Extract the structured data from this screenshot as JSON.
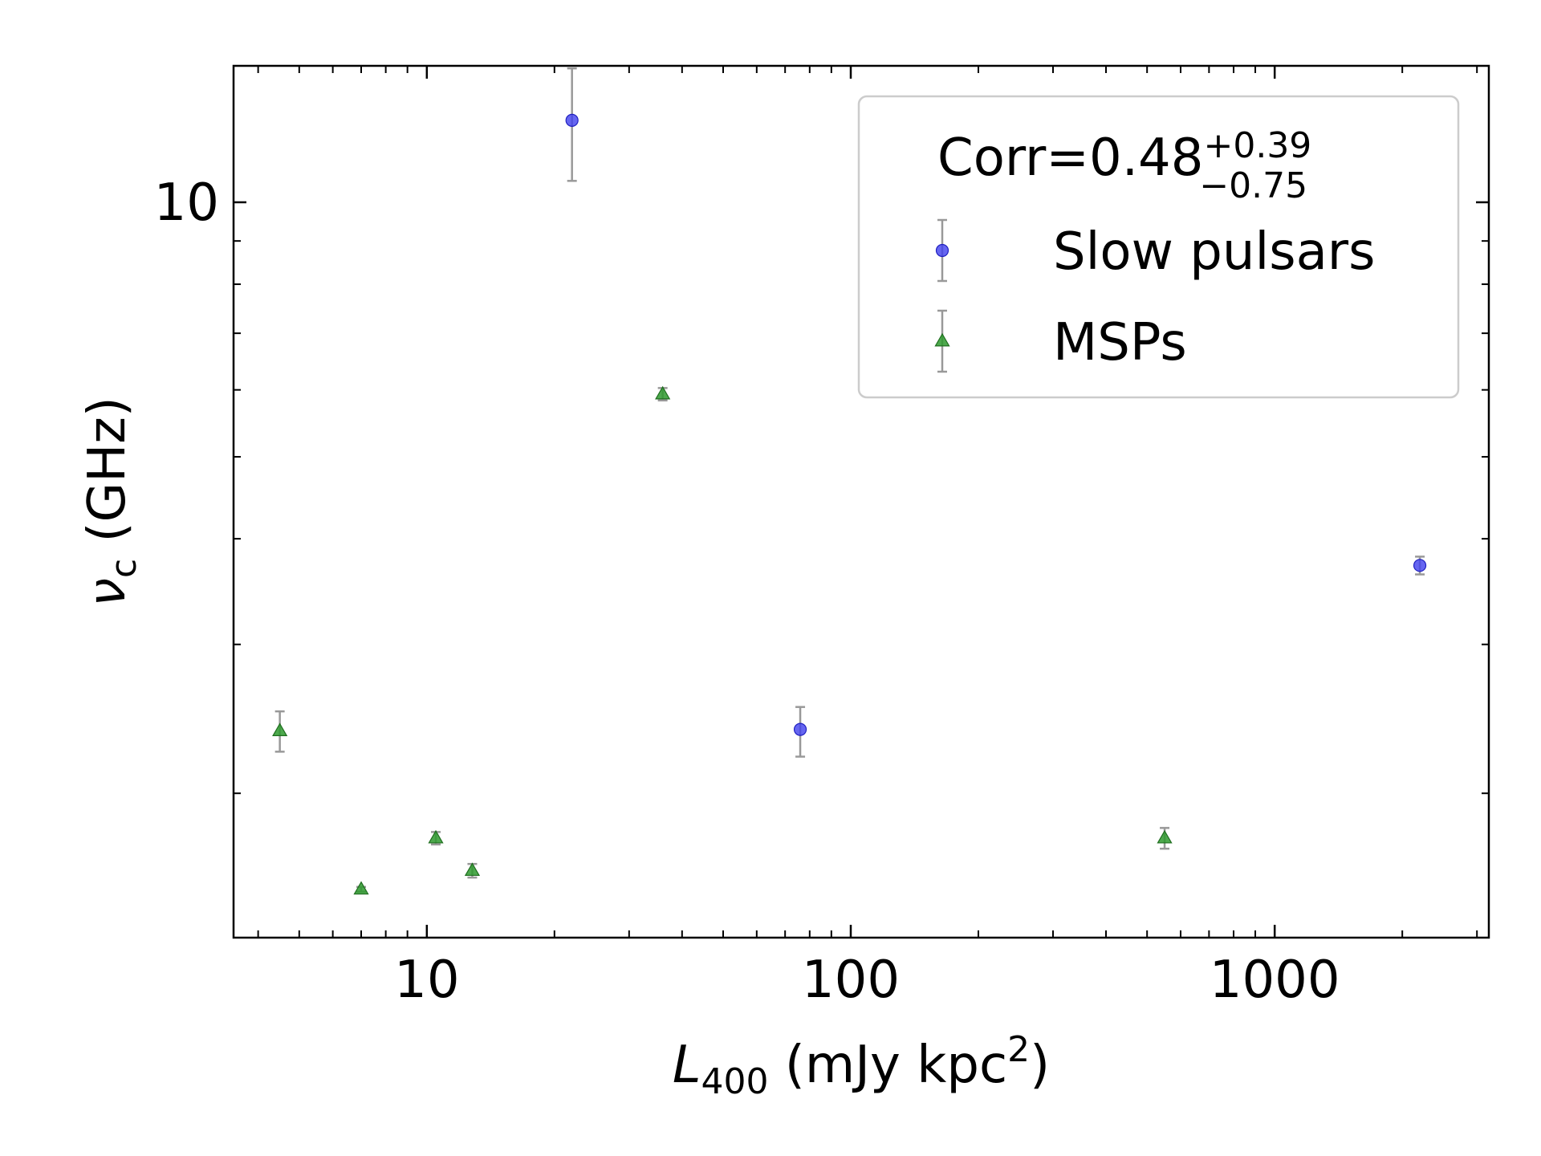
{
  "chart_data": {
    "type": "scatter",
    "title": "",
    "xlabel": {
      "main": "L",
      "sub": "400",
      "rest": " (mJy kpc",
      "sup": "2",
      "close": ")"
    },
    "ylabel": {
      "main": "ν",
      "sub": "c",
      "rest": " (GHz)"
    },
    "xscale": "log",
    "yscale": "log",
    "xlim": [
      3.5,
      3200
    ],
    "ylim": [
      1.35,
      14.5
    ],
    "x_ticks": [
      10,
      100,
      1000
    ],
    "x_tick_labels": [
      "10",
      "100",
      "1000"
    ],
    "y_ticks": [
      10
    ],
    "y_tick_labels": [
      "10"
    ],
    "grid": false,
    "legend": {
      "placement": "top-right",
      "title": {
        "main": "Corr=0.48",
        "sup": "+0.39",
        "sub": "−0.75"
      }
    },
    "series": [
      {
        "name": "Slow pulsars",
        "marker": "circle",
        "color": "#4040ee",
        "points": [
          {
            "x": 22.0,
            "y": 12.5,
            "err_low": 1.9,
            "err_high": 1.9
          },
          {
            "x": 76.0,
            "y": 2.38,
            "err_low": 0.17,
            "err_high": 0.15
          },
          {
            "x": 2200.0,
            "y": 3.72,
            "err_low": 0.09,
            "err_high": 0.09
          }
        ]
      },
      {
        "name": "MSPs",
        "marker": "triangle",
        "color": "#2e9a2e",
        "points": [
          {
            "x": 4.5,
            "y": 2.37,
            "err_low": 0.13,
            "err_high": 0.13
          },
          {
            "x": 7.0,
            "y": 1.54,
            "err_low": 0.01,
            "err_high": 0.01
          },
          {
            "x": 10.5,
            "y": 1.77,
            "err_low": 0.03,
            "err_high": 0.03
          },
          {
            "x": 12.8,
            "y": 1.62,
            "err_low": 0.03,
            "err_high": 0.03
          },
          {
            "x": 36.0,
            "y": 5.93,
            "err_low": 0.1,
            "err_high": 0.1
          },
          {
            "x": 550.0,
            "y": 1.77,
            "err_low": 0.05,
            "err_high": 0.05
          }
        ]
      }
    ],
    "errorbar_color": "#999999"
  }
}
